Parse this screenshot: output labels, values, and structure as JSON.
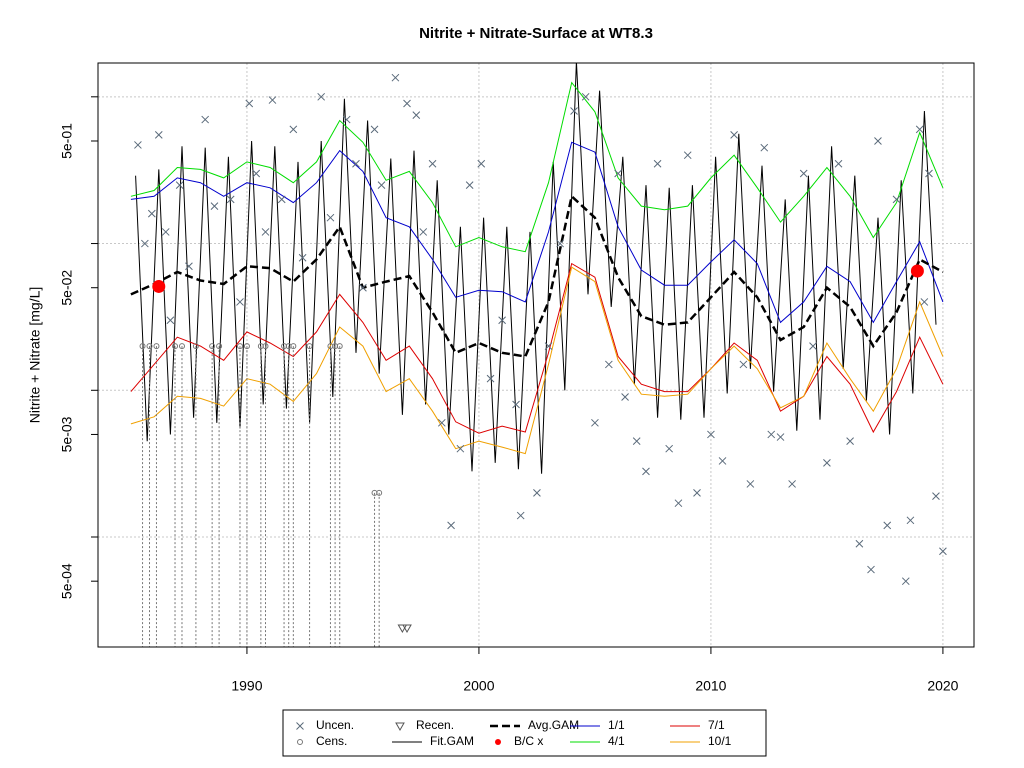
{
  "chart_data": {
    "type": "line",
    "title": "Nitrite + Nitrate-Surface at WT8.3",
    "y_label": "Nitrite + Nitrate [mg/L]",
    "log_y": true,
    "grid": true,
    "xlim": [
      1983.58,
      2021.34
    ],
    "ylim": [
      0.000178,
      1.7
    ],
    "xticks": [
      1990,
      2000,
      2010,
      2020
    ],
    "yticks": [
      {
        "value": 0.5,
        "label": "5e-01"
      },
      {
        "value": 0.05,
        "label": "5e-02"
      },
      {
        "value": 0.005,
        "label": "5e-03"
      },
      {
        "value": 0.0005,
        "label": "5e-04"
      }
    ],
    "ygrid": [
      1,
      0.1,
      0.01,
      0.001
    ],
    "legend": "bottom",
    "x": [
      1985,
      1986,
      1987,
      1988,
      1989,
      1990,
      1991,
      1992,
      1993,
      1994,
      1995,
      1996,
      1997,
      1998,
      1999,
      2000,
      2001,
      2002,
      2003,
      2004,
      2005,
      2006,
      2007,
      2008,
      2009,
      2010,
      2011,
      2012,
      2013,
      2014,
      2015,
      2016,
      2017,
      2018,
      2019,
      2020
    ],
    "series": [
      {
        "name": "Uncen.",
        "style": "x-marker",
        "color": "#5a6a7a",
        "x": [
          1985.3,
          1985.6,
          1985.9,
          1986.2,
          1986.5,
          1986.7,
          1987.1,
          1987.5,
          1988.2,
          1988.6,
          1989.3,
          1989.7,
          1990.1,
          1990.4,
          1990.8,
          1991.1,
          1991.5,
          1992.0,
          1992.4,
          1993.2,
          1993.6,
          1994.3,
          1994.7,
          1995.0,
          1995.5,
          1995.8,
          1996.4,
          1996.9,
          1997.3,
          1997.6,
          1998.0,
          1998.4,
          1998.8,
          1999.2,
          1999.6,
          2000.1,
          2000.5,
          2001.0,
          2001.6,
          2001.8,
          2002.5,
          2003.0,
          2003.5,
          2004.1,
          2004.6,
          2005.0,
          2005.6,
          2006.0,
          2006.3,
          2006.8,
          2007.2,
          2007.7,
          2008.2,
          2008.6,
          2009.0,
          2009.4,
          2010.0,
          2010.5,
          2011.0,
          2011.4,
          2011.7,
          2012.3,
          2012.6,
          2013.0,
          2013.5,
          2014.0,
          2014.4,
          2015.0,
          2015.5,
          2016.0,
          2016.4,
          2016.9,
          2017.2,
          2017.6,
          2018.0,
          2018.4,
          2018.6,
          2019.0,
          2019.4,
          2019.7,
          2020.0,
          2019.2
        ],
        "values": [
          0.47,
          0.1,
          0.16,
          0.55,
          0.12,
          0.03,
          0.25,
          0.07,
          0.7,
          0.18,
          0.2,
          0.04,
          0.9,
          0.3,
          0.12,
          0.95,
          0.2,
          0.6,
          0.08,
          1.0,
          0.15,
          0.7,
          0.35,
          0.05,
          0.6,
          0.25,
          1.35,
          0.9,
          0.75,
          0.12,
          0.35,
          0.006,
          0.0012,
          0.004,
          0.25,
          0.35,
          0.012,
          0.03,
          0.008,
          0.0014,
          0.002,
          0.02,
          0.1,
          0.8,
          1.0,
          0.006,
          0.015,
          0.3,
          0.009,
          0.0045,
          0.0028,
          0.35,
          0.004,
          0.0017,
          0.4,
          0.002,
          0.005,
          0.0033,
          0.55,
          0.015,
          0.0023,
          0.45,
          0.005,
          0.0048,
          0.0023,
          0.3,
          0.02,
          0.0032,
          0.35,
          0.0045,
          0.0009,
          0.0006,
          0.5,
          0.0012,
          0.2,
          0.0005,
          0.0013,
          0.6,
          0.3,
          0.0019,
          0.0008,
          0.04
        ]
      },
      {
        "name": "Cens.",
        "style": "circle",
        "color": "#777777",
        "drop_lines": true,
        "x": [
          1985.5,
          1985.8,
          1986.1,
          1986.9,
          1987.2,
          1987.8,
          1988.5,
          1988.8,
          1989.7,
          1990.0,
          1990.6,
          1990.8,
          1991.6,
          1991.8,
          1992.0,
          1992.7,
          1993.6,
          1993.8,
          1994.0,
          1995.5,
          1995.7
        ],
        "values": [
          0.02,
          0.02,
          0.02,
          0.02,
          0.02,
          0.02,
          0.02,
          0.02,
          0.02,
          0.02,
          0.02,
          0.02,
          0.02,
          0.02,
          0.02,
          0.02,
          0.02,
          0.02,
          0.02,
          0.002,
          0.002
        ]
      },
      {
        "name": "Recen.",
        "style": "triangle",
        "color": "#555555",
        "x": [
          1996.7,
          1996.9
        ],
        "values": [
          0.00024,
          0.00024
        ]
      },
      {
        "name": "Fit.GAM",
        "style": "line",
        "color": "#000000",
        "x": [
          1985.2,
          1985.7,
          1986.2,
          1986.7,
          1987.2,
          1987.7,
          1988.2,
          1988.7,
          1989.2,
          1989.7,
          1990.2,
          1990.7,
          1991.2,
          1991.7,
          1992.2,
          1992.7,
          1993.2,
          1993.7,
          1994.2,
          1994.7,
          1995.2,
          1995.7,
          1996.2,
          1996.7,
          1997.2,
          1997.7,
          1998.2,
          1998.7,
          1999.2,
          1999.7,
          2000.2,
          2000.7,
          2001.2,
          2001.7,
          2002.2,
          2002.7,
          2003.2,
          2003.7,
          2004.2,
          2004.7,
          2005.2,
          2005.7,
          2006.2,
          2006.7,
          2007.2,
          2007.7,
          2008.2,
          2008.7,
          2009.2,
          2009.7,
          2010.2,
          2010.7,
          2011.2,
          2011.7,
          2012.2,
          2012.7,
          2013.2,
          2013.7,
          2014.2,
          2014.7,
          2015.2,
          2015.7,
          2016.2,
          2016.7,
          2017.2,
          2017.7,
          2018.2,
          2018.7,
          2019.2,
          2019.7
        ],
        "values": [
          0.29,
          0.0045,
          0.32,
          0.005,
          0.46,
          0.0065,
          0.45,
          0.006,
          0.39,
          0.0055,
          0.5,
          0.008,
          0.46,
          0.0075,
          0.36,
          0.006,
          0.5,
          0.009,
          0.97,
          0.018,
          0.69,
          0.013,
          0.38,
          0.0068,
          0.43,
          0.008,
          0.27,
          0.005,
          0.13,
          0.0028,
          0.15,
          0.0032,
          0.13,
          0.0029,
          0.12,
          0.0027,
          0.36,
          0.01,
          1.75,
          0.045,
          1.1,
          0.037,
          0.39,
          0.011,
          0.25,
          0.0065,
          0.24,
          0.0063,
          0.25,
          0.0065,
          0.39,
          0.0095,
          0.56,
          0.014,
          0.34,
          0.0098,
          0.2,
          0.0053,
          0.29,
          0.0063,
          0.46,
          0.014,
          0.29,
          0.0085,
          0.15,
          0.005,
          0.27,
          0.0095,
          0.8,
          0.028
        ]
      },
      {
        "name": "Avg.GAM",
        "style": "dashed",
        "color": "#000000",
        "values": [
          0.045,
          0.053,
          0.064,
          0.056,
          0.053,
          0.07,
          0.068,
          0.055,
          0.078,
          0.13,
          0.05,
          0.055,
          0.06,
          0.034,
          0.018,
          0.021,
          0.018,
          0.017,
          0.04,
          0.21,
          0.15,
          0.059,
          0.032,
          0.028,
          0.029,
          0.043,
          0.064,
          0.043,
          0.022,
          0.027,
          0.05,
          0.037,
          0.02,
          0.034,
          0.078,
          0.064
        ]
      },
      {
        "name": "B/C x",
        "style": "dot",
        "color": "#ff0000",
        "x": [
          1986.2,
          2018.9
        ],
        "values": [
          0.051,
          0.065
        ]
      },
      {
        "name": "1/1",
        "style": "line",
        "color": "#0000cc",
        "values": [
          0.2,
          0.21,
          0.28,
          0.26,
          0.21,
          0.26,
          0.24,
          0.19,
          0.26,
          0.43,
          0.31,
          0.15,
          0.13,
          0.078,
          0.043,
          0.048,
          0.047,
          0.04,
          0.12,
          0.49,
          0.42,
          0.13,
          0.066,
          0.052,
          0.052,
          0.075,
          0.106,
          0.073,
          0.029,
          0.04,
          0.07,
          0.055,
          0.029,
          0.055,
          0.103,
          0.04
        ]
      },
      {
        "name": "4/1",
        "style": "line",
        "color": "#00dd00",
        "values": [
          0.21,
          0.23,
          0.33,
          0.32,
          0.28,
          0.36,
          0.33,
          0.26,
          0.36,
          0.69,
          0.49,
          0.27,
          0.31,
          0.19,
          0.095,
          0.11,
          0.095,
          0.088,
          0.26,
          1.25,
          0.79,
          0.28,
          0.18,
          0.17,
          0.18,
          0.28,
          0.4,
          0.24,
          0.14,
          0.21,
          0.33,
          0.21,
          0.11,
          0.19,
          0.57,
          0.24
        ]
      },
      {
        "name": "7/1",
        "style": "line",
        "color": "#dd0000",
        "values": [
          0.0098,
          0.015,
          0.023,
          0.02,
          0.016,
          0.025,
          0.021,
          0.017,
          0.025,
          0.045,
          0.029,
          0.016,
          0.02,
          0.012,
          0.0061,
          0.0051,
          0.0057,
          0.0052,
          0.018,
          0.073,
          0.059,
          0.017,
          0.011,
          0.0098,
          0.0098,
          0.014,
          0.021,
          0.016,
          0.0072,
          0.0091,
          0.017,
          0.011,
          0.0052,
          0.0098,
          0.023,
          0.011
        ]
      },
      {
        "name": "10/1",
        "style": "line",
        "color": "#f0a000",
        "values": [
          0.0059,
          0.0066,
          0.0091,
          0.0088,
          0.0078,
          0.012,
          0.011,
          0.0084,
          0.013,
          0.027,
          0.02,
          0.0098,
          0.012,
          0.0072,
          0.004,
          0.0045,
          0.0041,
          0.0037,
          0.015,
          0.069,
          0.055,
          0.016,
          0.0094,
          0.0091,
          0.0094,
          0.014,
          0.02,
          0.014,
          0.0076,
          0.0091,
          0.021,
          0.012,
          0.0072,
          0.014,
          0.04,
          0.017
        ]
      }
    ]
  }
}
